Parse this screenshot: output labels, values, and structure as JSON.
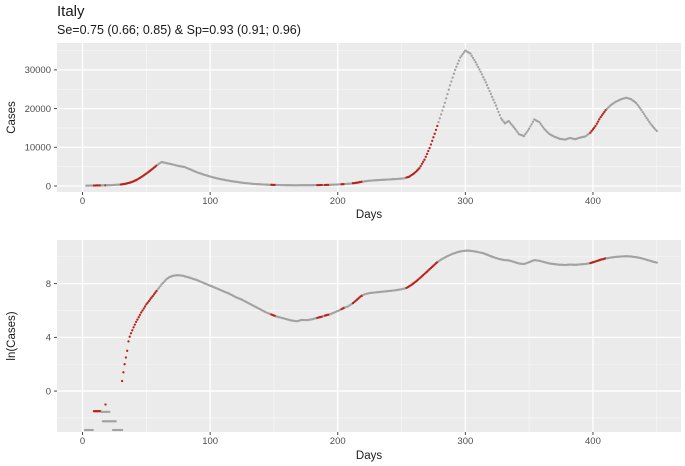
{
  "header": {
    "title": "Italy",
    "subtitle": "Se=0.75 (0.66; 0.85) & Sp=0.93 (0.91; 0.96)"
  },
  "colors": {
    "background": "#ffffff",
    "panel_bg": "#ebebeb",
    "grid_major": "#ffffff",
    "grid_minor": "#ffffff",
    "tick_mark": "#333333",
    "tick_text": "#4d4d4d",
    "axis_title": "#1a1a1a",
    "dot_gray": "#a2a2a2",
    "dot_red": "#b82219"
  },
  "chart_data": [
    {
      "type": "scatter",
      "panel": "cases-linear",
      "xlabel": "Days",
      "ylabel": "Cases",
      "xlim": [
        -20,
        469
      ],
      "ylim": [
        -1550,
        36950
      ],
      "xticks": {
        "values": [
          0,
          100,
          200,
          300,
          400
        ],
        "labels": [
          "0",
          "100",
          "200",
          "300",
          "400"
        ]
      },
      "yticks": {
        "values": [
          0,
          10000,
          20000,
          30000
        ],
        "labels": [
          "0",
          "10000",
          "20000",
          "30000"
        ]
      },
      "xminor": [
        50,
        150,
        250,
        350,
        450
      ],
      "yminor": [
        5000,
        15000,
        25000,
        35000
      ],
      "grid": true,
      "legend": "none",
      "red_segments": [
        [
          9,
          14
        ],
        [
          18,
          18
        ],
        [
          30,
          58
        ],
        [
          148,
          151
        ],
        [
          184,
          188
        ],
        [
          190,
          193
        ],
        [
          203,
          205
        ],
        [
          212,
          219
        ],
        [
          254,
          278
        ],
        [
          398,
          410
        ]
      ],
      "keypoints": [
        [
          3,
          100
        ],
        [
          10,
          140
        ],
        [
          15,
          170
        ],
        [
          20,
          210
        ],
        [
          25,
          280
        ],
        [
          30,
          380
        ],
        [
          34,
          600
        ],
        [
          38,
          950
        ],
        [
          42,
          1500
        ],
        [
          46,
          2300
        ],
        [
          50,
          3200
        ],
        [
          54,
          4200
        ],
        [
          58,
          5300
        ],
        [
          62,
          6200
        ],
        [
          66,
          5900
        ],
        [
          70,
          5600
        ],
        [
          75,
          5200
        ],
        [
          80,
          4900
        ],
        [
          85,
          4200
        ],
        [
          90,
          3500
        ],
        [
          95,
          2950
        ],
        [
          100,
          2450
        ],
        [
          105,
          2000
        ],
        [
          110,
          1650
        ],
        [
          115,
          1350
        ],
        [
          120,
          1100
        ],
        [
          125,
          850
        ],
        [
          130,
          670
        ],
        [
          135,
          520
        ],
        [
          140,
          410
        ],
        [
          145,
          330
        ],
        [
          150,
          280
        ],
        [
          155,
          240
        ],
        [
          160,
          210
        ],
        [
          165,
          190
        ],
        [
          170,
          195
        ],
        [
          175,
          205
        ],
        [
          180,
          215
        ],
        [
          185,
          235
        ],
        [
          190,
          270
        ],
        [
          195,
          310
        ],
        [
          200,
          390
        ],
        [
          205,
          490
        ],
        [
          210,
          620
        ],
        [
          215,
          850
        ],
        [
          219,
          1100
        ],
        [
          223,
          1300
        ],
        [
          228,
          1450
        ],
        [
          233,
          1550
        ],
        [
          238,
          1650
        ],
        [
          243,
          1750
        ],
        [
          248,
          1850
        ],
        [
          252,
          2000
        ],
        [
          256,
          2400
        ],
        [
          260,
          3300
        ],
        [
          264,
          4600
        ],
        [
          268,
          6800
        ],
        [
          272,
          9800
        ],
        [
          276,
          13500
        ],
        [
          280,
          17500
        ],
        [
          284,
          21500
        ],
        [
          288,
          26000
        ],
        [
          292,
          30000
        ],
        [
          296,
          33200
        ],
        [
          300,
          35000
        ],
        [
          304,
          34200
        ],
        [
          308,
          32000
        ],
        [
          312,
          29500
        ],
        [
          316,
          26800
        ],
        [
          320,
          23800
        ],
        [
          324,
          20800
        ],
        [
          328,
          17500
        ],
        [
          331,
          16200
        ],
        [
          334,
          16800
        ],
        [
          338,
          15200
        ],
        [
          342,
          13400
        ],
        [
          346,
          12900
        ],
        [
          350,
          14800
        ],
        [
          354,
          17200
        ],
        [
          358,
          16500
        ],
        [
          362,
          14700
        ],
        [
          366,
          13400
        ],
        [
          370,
          12700
        ],
        [
          374,
          12200
        ],
        [
          378,
          12000
        ],
        [
          382,
          12400
        ],
        [
          386,
          12100
        ],
        [
          390,
          12500
        ],
        [
          394,
          12800
        ],
        [
          398,
          13800
        ],
        [
          402,
          15500
        ],
        [
          406,
          17800
        ],
        [
          410,
          19600
        ],
        [
          414,
          20900
        ],
        [
          418,
          21800
        ],
        [
          422,
          22400
        ],
        [
          426,
          22800
        ],
        [
          430,
          22400
        ],
        [
          434,
          21400
        ],
        [
          438,
          19600
        ],
        [
          442,
          17600
        ],
        [
          446,
          15700
        ],
        [
          450,
          14200
        ]
      ],
      "early_marks": []
    },
    {
      "type": "scatter",
      "panel": "cases-log",
      "xlabel": "Days",
      "ylabel": "ln(Cases)",
      "xlim": [
        -20,
        469
      ],
      "ylim": [
        -3.05,
        11.25
      ],
      "xticks": {
        "values": [
          0,
          100,
          200,
          300,
          400
        ],
        "labels": [
          "0",
          "100",
          "200",
          "300",
          "400"
        ]
      },
      "yticks": {
        "values": [
          0,
          4,
          8
        ],
        "labels": [
          "0",
          "4",
          "8"
        ]
      },
      "xminor": [
        50,
        150,
        250,
        350,
        450
      ],
      "yminor": [
        -2,
        2,
        6,
        10
      ],
      "grid": true,
      "legend": "none",
      "red_segments": [
        [
          9,
          14
        ],
        [
          18,
          18
        ],
        [
          30,
          58
        ],
        [
          148,
          151
        ],
        [
          184,
          188
        ],
        [
          190,
          193
        ],
        [
          203,
          205
        ],
        [
          212,
          219
        ],
        [
          254,
          278
        ],
        [
          398,
          410
        ]
      ],
      "keypoints": [
        [
          31,
          0.75
        ],
        [
          32,
          1.4
        ],
        [
          33,
          2.0
        ],
        [
          35,
          3.0
        ],
        [
          36,
          3.7
        ],
        [
          37,
          4.05
        ],
        [
          38,
          4.3
        ],
        [
          40,
          4.75
        ],
        [
          42,
          5.15
        ],
        [
          44,
          5.5
        ],
        [
          46,
          5.85
        ],
        [
          48,
          6.15
        ],
        [
          50,
          6.45
        ],
        [
          52,
          6.7
        ],
        [
          54,
          6.95
        ],
        [
          56,
          7.2
        ],
        [
          58,
          7.45
        ],
        [
          60,
          7.7
        ],
        [
          62,
          7.95
        ],
        [
          64,
          8.15
        ],
        [
          66,
          8.35
        ],
        [
          68,
          8.48
        ],
        [
          71,
          8.58
        ],
        [
          74,
          8.63
        ],
        [
          78,
          8.6
        ],
        [
          82,
          8.5
        ],
        [
          86,
          8.38
        ],
        [
          90,
          8.25
        ],
        [
          95,
          8.05
        ],
        [
          100,
          7.85
        ],
        [
          105,
          7.65
        ],
        [
          110,
          7.45
        ],
        [
          115,
          7.25
        ],
        [
          120,
          7.0
        ],
        [
          125,
          6.8
        ],
        [
          130,
          6.55
        ],
        [
          135,
          6.3
        ],
        [
          140,
          6.05
        ],
        [
          144,
          5.85
        ],
        [
          148,
          5.7
        ],
        [
          152,
          5.55
        ],
        [
          156,
          5.45
        ],
        [
          160,
          5.35
        ],
        [
          164,
          5.25
        ],
        [
          168,
          5.2
        ],
        [
          172,
          5.3
        ],
        [
          176,
          5.28
        ],
        [
          180,
          5.35
        ],
        [
          184,
          5.45
        ],
        [
          188,
          5.55
        ],
        [
          191,
          5.65
        ],
        [
          194,
          5.72
        ],
        [
          198,
          5.88
        ],
        [
          202,
          6.05
        ],
        [
          205,
          6.2
        ],
        [
          208,
          6.3
        ],
        [
          212,
          6.55
        ],
        [
          215,
          6.8
        ],
        [
          218,
          7.05
        ],
        [
          221,
          7.2
        ],
        [
          225,
          7.3
        ],
        [
          230,
          7.35
        ],
        [
          235,
          7.4
        ],
        [
          240,
          7.45
        ],
        [
          245,
          7.5
        ],
        [
          250,
          7.58
        ],
        [
          254,
          7.68
        ],
        [
          258,
          7.92
        ],
        [
          262,
          8.22
        ],
        [
          266,
          8.55
        ],
        [
          270,
          8.9
        ],
        [
          274,
          9.25
        ],
        [
          278,
          9.6
        ],
        [
          282,
          9.85
        ],
        [
          286,
          10.05
        ],
        [
          290,
          10.22
        ],
        [
          294,
          10.35
        ],
        [
          298,
          10.43
        ],
        [
          302,
          10.46
        ],
        [
          306,
          10.42
        ],
        [
          310,
          10.35
        ],
        [
          314,
          10.27
        ],
        [
          318,
          10.12
        ],
        [
          322,
          9.97
        ],
        [
          326,
          9.85
        ],
        [
          330,
          9.76
        ],
        [
          334,
          9.73
        ],
        [
          338,
          9.62
        ],
        [
          342,
          9.5
        ],
        [
          346,
          9.46
        ],
        [
          350,
          9.6
        ],
        [
          354,
          9.75
        ],
        [
          358,
          9.7
        ],
        [
          362,
          9.6
        ],
        [
          366,
          9.5
        ],
        [
          370,
          9.45
        ],
        [
          374,
          9.41
        ],
        [
          378,
          9.39
        ],
        [
          382,
          9.42
        ],
        [
          386,
          9.4
        ],
        [
          390,
          9.43
        ],
        [
          394,
          9.46
        ],
        [
          398,
          9.53
        ],
        [
          402,
          9.65
        ],
        [
          406,
          9.78
        ],
        [
          410,
          9.88
        ],
        [
          414,
          9.94
        ],
        [
          418,
          9.99
        ],
        [
          422,
          10.02
        ],
        [
          426,
          10.04
        ],
        [
          430,
          10.02
        ],
        [
          434,
          9.97
        ],
        [
          438,
          9.89
        ],
        [
          442,
          9.78
        ],
        [
          446,
          9.66
        ],
        [
          450,
          9.57
        ]
      ],
      "early_marks": [
        {
          "days": [
            2,
            8
          ],
          "value": -2.9,
          "color": "gray"
        },
        {
          "days": [
            9,
            14
          ],
          "value": -1.5,
          "color": "red"
        },
        {
          "days": [
            15,
            21
          ],
          "value": -1.55,
          "color": "gray"
        },
        {
          "days": [
            16,
            26
          ],
          "value": -2.25,
          "color": "gray"
        },
        {
          "days": [
            24,
            31
          ],
          "value": -2.9,
          "color": "gray"
        },
        {
          "days": [
            18,
            18
          ],
          "value": -1.0,
          "color": "red"
        }
      ]
    }
  ]
}
